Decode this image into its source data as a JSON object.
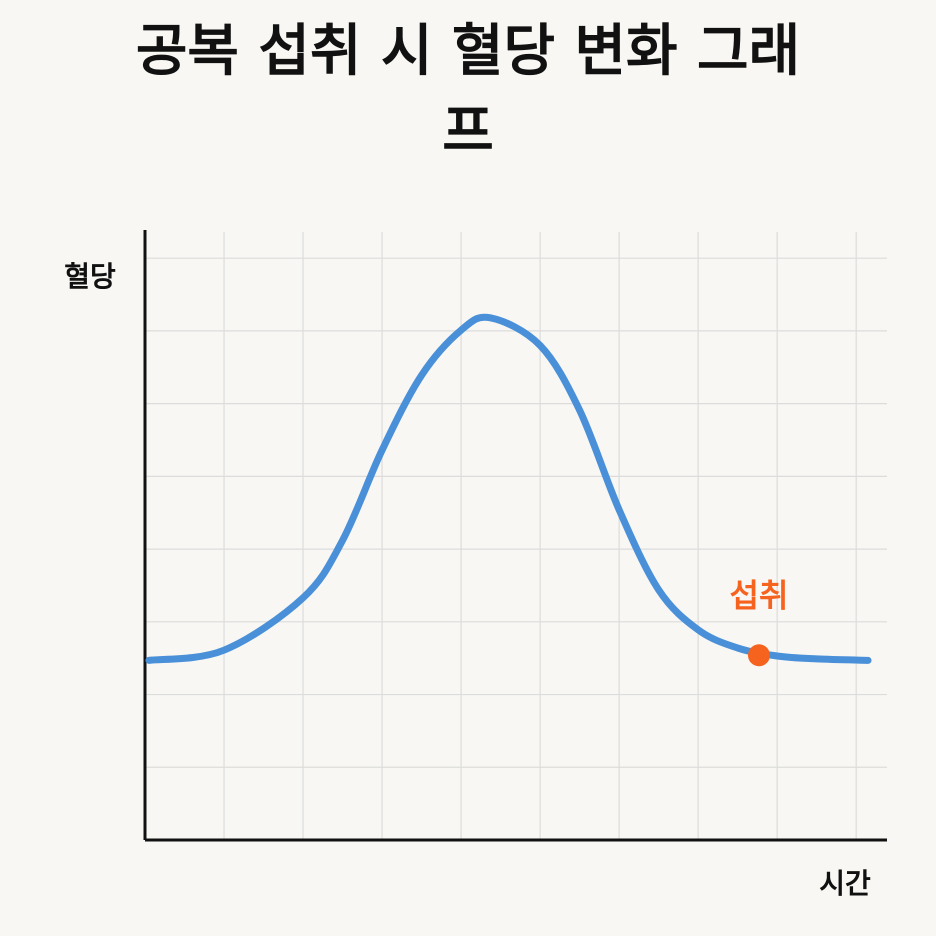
{
  "chart_data": {
    "type": "line",
    "title": "공복 섭취 시 혈당 변화 그래프",
    "y_label": "혈당",
    "x_label": "시간",
    "x": [
      0.05,
      1,
      2,
      2.5,
      3,
      3.5,
      4,
      4.37,
      5,
      5.5,
      6,
      6.5,
      7,
      7.5,
      8,
      8.5,
      9.15
    ],
    "series": [
      {
        "color": "#4a90d9",
        "values": [
          2.47,
          2.61,
          3.33,
          4.12,
          5.36,
          6.39,
          7.01,
          7.18,
          6.8,
          5.91,
          4.54,
          3.44,
          2.89,
          2.64,
          2.53,
          2.49,
          2.47
        ]
      }
    ],
    "annotation": {
      "text": "섭취",
      "x": 7.77,
      "y": 2.54,
      "color": "#f5631f"
    },
    "xlim": [
      0,
      9.39
    ],
    "ylim": [
      0,
      8.36
    ],
    "xticks": [
      1,
      2,
      3,
      4,
      5,
      6,
      7,
      8,
      9
    ],
    "yticks": [
      1,
      2,
      3,
      4,
      5,
      6,
      7,
      8
    ],
    "grid": true
  }
}
